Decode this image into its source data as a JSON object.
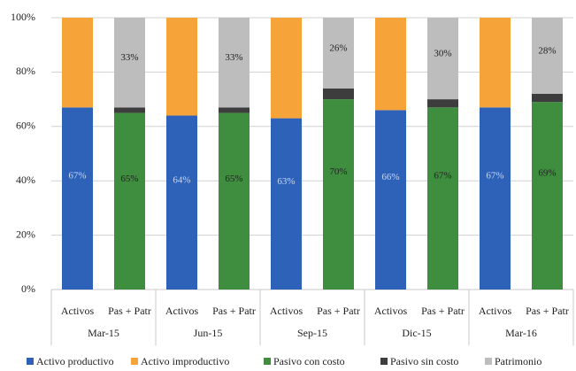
{
  "chart_data": {
    "type": "bar",
    "stacked": true,
    "categories": [
      "Activos",
      "Pas + Patr",
      "Activos",
      "Pas + Patr",
      "Activos",
      "Pas + Patr",
      "Activos",
      "Pas + Patr",
      "Activos",
      "Pas + Patr"
    ],
    "groups": [
      "Mar-15",
      "Jun-15",
      "Sep-15",
      "Dic-15",
      "Mar-16"
    ],
    "series": [
      {
        "name": "Activo productivo",
        "color": "#2e62b8",
        "values": [
          67,
          null,
          64,
          null,
          63,
          null,
          66,
          null,
          67,
          null
        ],
        "value_labels": [
          "67%",
          null,
          "64%",
          null,
          "63%",
          null,
          "66%",
          null,
          "67%",
          null
        ]
      },
      {
        "name": "Activo improductivo",
        "color": "#f6a43a",
        "values": [
          33,
          null,
          36,
          null,
          37,
          null,
          34,
          null,
          33,
          null
        ]
      },
      {
        "name": "Pasivo con costo",
        "color": "#3f8e3f",
        "values": [
          null,
          65,
          null,
          65,
          null,
          70,
          null,
          67,
          null,
          69
        ],
        "value_labels": [
          null,
          "65%",
          null,
          "65%",
          null,
          "70%",
          null,
          "67%",
          null,
          "69%"
        ]
      },
      {
        "name": "Pasivo sin costo",
        "color": "#3d3d3d",
        "values": [
          null,
          2,
          null,
          2,
          null,
          4,
          null,
          3,
          null,
          3
        ]
      },
      {
        "name": "Patrimonio",
        "color": "#bdbdbd",
        "values": [
          null,
          33,
          null,
          33,
          null,
          26,
          null,
          30,
          null,
          28
        ],
        "value_labels": [
          null,
          "33%",
          null,
          "33%",
          null,
          "26%",
          null,
          "30%",
          null,
          "28%"
        ]
      }
    ],
    "ylim": [
      0,
      100
    ],
    "yticks": [
      {
        "value": 0,
        "label": "0%"
      },
      {
        "value": 20,
        "label": "20%"
      },
      {
        "value": 40,
        "label": "40%"
      },
      {
        "value": 60,
        "label": "60%"
      },
      {
        "value": 80,
        "label": "80%"
      },
      {
        "value": 100,
        "label": "100%"
      }
    ],
    "grid": true
  }
}
